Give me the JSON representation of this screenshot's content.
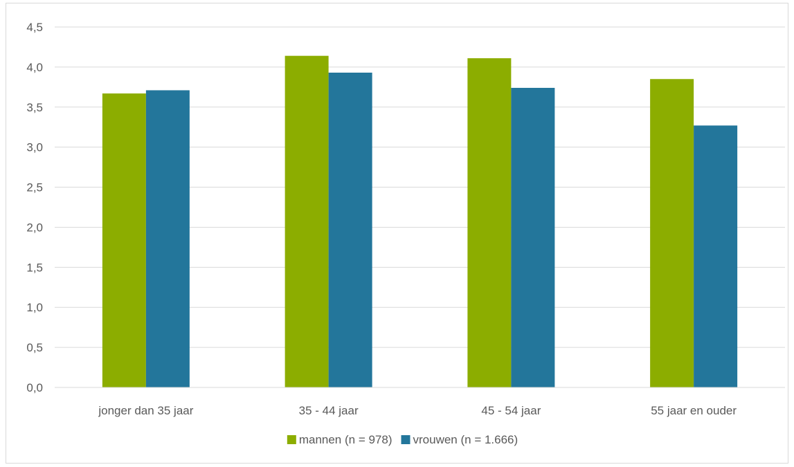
{
  "chart_data": {
    "type": "bar",
    "title": "",
    "xlabel": "",
    "ylabel": "",
    "categories": [
      "jonger dan 35 jaar",
      "35 - 44 jaar",
      "45 - 54 jaar",
      "55 jaar en ouder"
    ],
    "series": [
      {
        "name": "mannen (n = 978)",
        "color": "#8cad00",
        "values": [
          3.67,
          4.14,
          4.11,
          3.85
        ]
      },
      {
        "name": "vrouwen (n = 1.666)",
        "color": "#23769b",
        "values": [
          3.71,
          3.93,
          3.74,
          3.27
        ]
      }
    ],
    "ylim": [
      0,
      4.5
    ],
    "yticks": [
      "0,0",
      "0,5",
      "1,0",
      "1,5",
      "2,0",
      "2,5",
      "3,0",
      "3,5",
      "4,0",
      "4,5"
    ],
    "grid": true,
    "gridline_color": "#d9d9d9",
    "legend_position": "bottom"
  }
}
